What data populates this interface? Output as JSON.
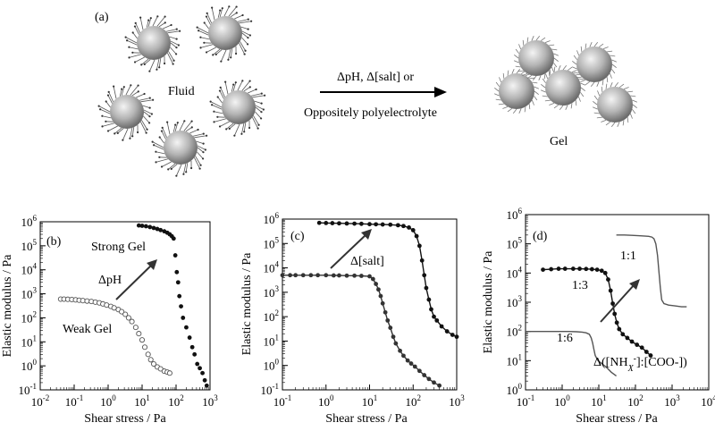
{
  "panel_a": {
    "label": "(a)",
    "fluid_label": "Fluid",
    "gel_label": "Gel",
    "arrow_text_1": "ΔpH, Δ[salt] or",
    "arrow_text_2": "Oppositely polyelectrolyte"
  },
  "chart_data": [
    {
      "type": "scatter",
      "panel": "(b)",
      "xlabel": "Shear stress / Pa",
      "ylabel": "Elastic modulus / Pa",
      "x_scale": "log",
      "y_scale": "log",
      "xlim": [
        0.01,
        1000
      ],
      "ylim": [
        0.1,
        1000000
      ],
      "xticks": [
        "10-2",
        "10-1",
        "100",
        "101",
        "102",
        "103"
      ],
      "yticks": [
        "10-1",
        "100",
        "101",
        "102",
        "103",
        "104",
        "105",
        "106"
      ],
      "annotations": [
        "Strong Gel",
        "ΔpH",
        "Weak Gel"
      ],
      "series": [
        {
          "marker": "filled-circle",
          "color": "#111111",
          "points": [
            [
              8,
              700000
            ],
            [
              10,
              680000
            ],
            [
              13,
              650000
            ],
            [
              17,
              600000
            ],
            [
              22,
              550000
            ],
            [
              28,
              500000
            ],
            [
              35,
              450000
            ],
            [
              45,
              400000
            ],
            [
              55,
              350000
            ],
            [
              65,
              300000
            ],
            [
              75,
              250000
            ],
            [
              85,
              200000
            ],
            [
              95,
              40000
            ],
            [
              105,
              8000
            ],
            [
              115,
              3000
            ],
            [
              125,
              800
            ],
            [
              140,
              300
            ],
            [
              160,
              100
            ],
            [
              200,
              40
            ],
            [
              250,
              15
            ],
            [
              300,
              6
            ],
            [
              350,
              3
            ],
            [
              420,
              1.2
            ],
            [
              500,
              0.8
            ],
            [
              600,
              0.5
            ],
            [
              700,
              0.25
            ],
            [
              800,
              0.15
            ]
          ]
        },
        {
          "marker": "open-circle",
          "color": "#555555",
          "points": [
            [
              0.04,
              600
            ],
            [
              0.05,
              600
            ],
            [
              0.065,
              590
            ],
            [
              0.085,
              580
            ],
            [
              0.11,
              560
            ],
            [
              0.14,
              540
            ],
            [
              0.18,
              520
            ],
            [
              0.24,
              500
            ],
            [
              0.32,
              480
            ],
            [
              0.42,
              450
            ],
            [
              0.55,
              420
            ],
            [
              0.7,
              380
            ],
            [
              0.9,
              340
            ],
            [
              1.2,
              300
            ],
            [
              1.5,
              260
            ],
            [
              2,
              220
            ],
            [
              2.5,
              180
            ],
            [
              3.2,
              140
            ],
            [
              4,
              100
            ],
            [
              5,
              70
            ],
            [
              6.5,
              40
            ],
            [
              8,
              22
            ],
            [
              10,
              12
            ],
            [
              12,
              6
            ],
            [
              15,
              3
            ],
            [
              18,
              1.8
            ],
            [
              22,
              1.2
            ],
            [
              28,
              0.9
            ],
            [
              35,
              0.75
            ],
            [
              45,
              0.6
            ],
            [
              55,
              0.55
            ],
            [
              65,
              0.5
            ]
          ]
        }
      ]
    },
    {
      "type": "line",
      "panel": "(c)",
      "xlabel": "Shear stress / Pa",
      "ylabel": "Elastic modulus / Pa",
      "x_scale": "log",
      "y_scale": "log",
      "xlim": [
        0.1,
        1000
      ],
      "ylim": [
        0.1,
        1000000
      ],
      "xticks": [
        "10-1",
        "100",
        "101",
        "102",
        "103"
      ],
      "yticks": [
        "10-1",
        "100",
        "101",
        "102",
        "103",
        "104",
        "105",
        "106"
      ],
      "annotations": [
        "Δ[salt]"
      ],
      "series": [
        {
          "marker": "filled-circle",
          "color": "#111111",
          "points": [
            [
              0.7,
              700000
            ],
            [
              1,
              690000
            ],
            [
              1.4,
              680000
            ],
            [
              2,
              670000
            ],
            [
              3,
              660000
            ],
            [
              4.5,
              650000
            ],
            [
              6.5,
              640000
            ],
            [
              10,
              620000
            ],
            [
              14,
              610000
            ],
            [
              20,
              600000
            ],
            [
              30,
              590000
            ],
            [
              45,
              560000
            ],
            [
              60,
              520000
            ],
            [
              80,
              450000
            ],
            [
              100,
              350000
            ],
            [
              120,
              200000
            ],
            [
              140,
              80000
            ],
            [
              160,
              20000
            ],
            [
              180,
              5000
            ],
            [
              200,
              1500
            ],
            [
              230,
              500
            ],
            [
              260,
              200
            ],
            [
              300,
              100
            ],
            [
              350,
              70
            ],
            [
              450,
              40
            ],
            [
              600,
              25
            ],
            [
              800,
              18
            ],
            [
              1000,
              15
            ]
          ]
        },
        {
          "marker": "filled-circle",
          "color": "#333333",
          "points": [
            [
              0.1,
              5000
            ],
            [
              0.15,
              5000
            ],
            [
              0.2,
              5000
            ],
            [
              0.3,
              5000
            ],
            [
              0.45,
              5000
            ],
            [
              0.65,
              5000
            ],
            [
              1,
              5000
            ],
            [
              1.5,
              4900
            ],
            [
              2,
              4900
            ],
            [
              3,
              4800
            ],
            [
              4.5,
              4800
            ],
            [
              6.5,
              4700
            ],
            [
              10,
              4500
            ],
            [
              12,
              3500
            ],
            [
              14,
              2200
            ],
            [
              16,
              1300
            ],
            [
              18,
              700
            ],
            [
              20,
              350
            ],
            [
              23,
              150
            ],
            [
              26,
              70
            ],
            [
              30,
              35
            ],
            [
              35,
              15
            ],
            [
              40,
              8
            ],
            [
              50,
              4
            ],
            [
              60,
              2.5
            ],
            [
              75,
              1.6
            ],
            [
              90,
              1.2
            ],
            [
              110,
              0.9
            ],
            [
              140,
              0.6
            ],
            [
              180,
              0.4
            ],
            [
              230,
              0.28
            ],
            [
              300,
              0.2
            ],
            [
              400,
              0.15
            ]
          ]
        }
      ]
    },
    {
      "type": "line",
      "panel": "(d)",
      "xlabel": "Shear stress / Pa",
      "ylabel": "Elastic modulus / Pa",
      "x_scale": "log",
      "y_scale": "log",
      "xlim": [
        0.1,
        10000
      ],
      "ylim": [
        1,
        1000000
      ],
      "xticks": [
        "10-1",
        "100",
        "101",
        "102",
        "103",
        "104"
      ],
      "yticks": [
        "100",
        "101",
        "102",
        "103",
        "104",
        "105",
        "106"
      ],
      "annotations": [
        "1:1",
        "1:3",
        "1:6",
        "Δ([NHX-]:[COO-])"
      ],
      "series": [
        {
          "name": "1:1",
          "marker": "none",
          "color": "#555555",
          "points": [
            [
              30,
              200000
            ],
            [
              50,
              200000
            ],
            [
              80,
              195000
            ],
            [
              120,
              190000
            ],
            [
              170,
              185000
            ],
            [
              230,
              180000
            ],
            [
              280,
              170000
            ],
            [
              320,
              150000
            ],
            [
              360,
              100000
            ],
            [
              400,
              40000
            ],
            [
              440,
              10000
            ],
            [
              480,
              3000
            ],
            [
              520,
              1200
            ],
            [
              600,
              900
            ],
            [
              800,
              800
            ],
            [
              1200,
              750
            ],
            [
              1800,
              700
            ],
            [
              2500,
              700
            ]
          ]
        },
        {
          "name": "1:3",
          "marker": "filled-circle",
          "color": "#111111",
          "points": [
            [
              0.3,
              13000
            ],
            [
              0.5,
              13500
            ],
            [
              0.8,
              14000
            ],
            [
              1.2,
              14000
            ],
            [
              2,
              14000
            ],
            [
              3,
              14000
            ],
            [
              4.5,
              13800
            ],
            [
              6.5,
              13500
            ],
            [
              9,
              13000
            ],
            [
              12,
              12000
            ],
            [
              15,
              10000
            ],
            [
              18,
              6000
            ],
            [
              21,
              2500
            ],
            [
              24,
              900
            ],
            [
              27,
              400
            ],
            [
              31,
              200
            ],
            [
              36,
              120
            ],
            [
              45,
              80
            ],
            [
              60,
              60
            ],
            [
              80,
              45
            ],
            [
              110,
              35
            ],
            [
              150,
              28
            ],
            [
              200,
              20
            ],
            [
              260,
              15
            ]
          ]
        },
        {
          "name": "1:6",
          "marker": "none",
          "color": "#555555",
          "points": [
            [
              0.1,
              100
            ],
            [
              0.2,
              100
            ],
            [
              0.4,
              100
            ],
            [
              0.8,
              100
            ],
            [
              1.5,
              100
            ],
            [
              2.5,
              98
            ],
            [
              3.5,
              95
            ],
            [
              4.5,
              90
            ],
            [
              5.5,
              80
            ],
            [
              6.2,
              60
            ],
            [
              6.8,
              40
            ],
            [
              7.3,
              25
            ],
            [
              8,
              15
            ],
            [
              9.5,
              10
            ],
            [
              12,
              8
            ],
            [
              16,
              6
            ],
            [
              22,
              4
            ],
            [
              30,
              3
            ]
          ]
        }
      ]
    }
  ]
}
